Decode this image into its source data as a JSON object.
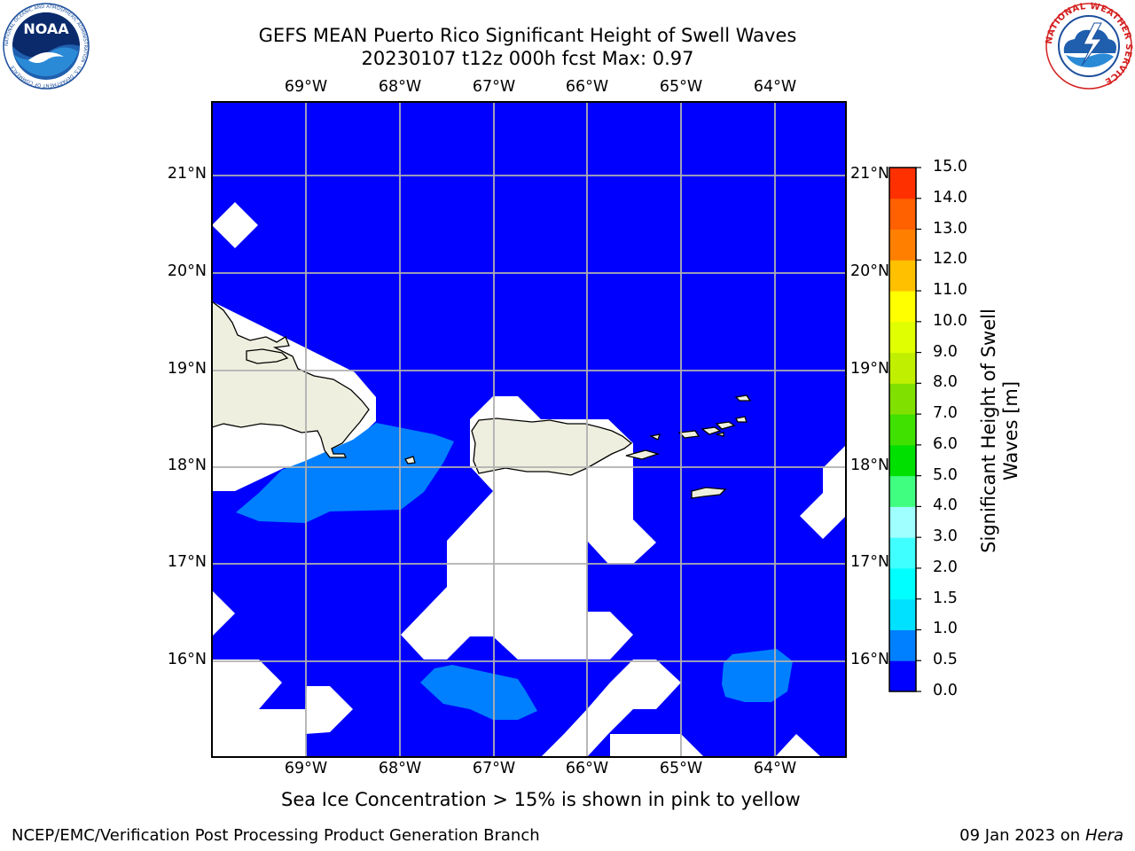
{
  "header": {
    "title_line1": "GEFS MEAN Puerto Rico Significant Height of Swell Waves",
    "title_line2": "20230107 t12z 000h fcst   Max: 0.97"
  },
  "logos": {
    "noaa_text": "NOAA",
    "noaa_ring_text": "NATIONAL OCEANIC AND ATMOSPHERIC ADMINISTRATION · U.S. DEPARTMENT OF COMMERCE",
    "nws_ring_text": "NATIONAL WEATHER SERVICE"
  },
  "map": {
    "lon_labels": [
      "69°W",
      "68°W",
      "67°W",
      "66°W",
      "65°W",
      "64°W"
    ],
    "lat_labels": [
      "21°N",
      "20°N",
      "19°N",
      "18°N",
      "17°N",
      "16°N"
    ],
    "colors": {
      "ocean_low": "#0000ff",
      "ocean_mid": "#0080ff",
      "land": "#efefdf",
      "gridline": "#b0b0b0",
      "no_data": "#ffffff"
    }
  },
  "colorbar": {
    "label": "Significant Height of Swell Waves [m]",
    "ticks": [
      "0.0",
      "0.5",
      "1.0",
      "1.5",
      "2.0",
      "3.0",
      "4.0",
      "5.0",
      "6.0",
      "7.0",
      "8.0",
      "9.0",
      "10.0",
      "11.0",
      "12.0",
      "13.0",
      "14.0",
      "15.0"
    ],
    "colors": [
      "#0000ff",
      "#0080ff",
      "#00e0ff",
      "#00ffff",
      "#40ffff",
      "#a0ffff",
      "#40ff80",
      "#00e000",
      "#40e000",
      "#80e000",
      "#c0f000",
      "#e0ff00",
      "#ffff00",
      "#ffc000",
      "#ff8000",
      "#ff6000",
      "#ff3000",
      "#ff0000"
    ]
  },
  "notes": {
    "sea_ice": "Sea Ice Concentration > 15% is shown in pink to yellow"
  },
  "footer": {
    "producer": "NCEP/EMC/Verification Post Processing Product Generation Branch",
    "date": "09 Jan 2023 on ",
    "machine": "Hera"
  }
}
